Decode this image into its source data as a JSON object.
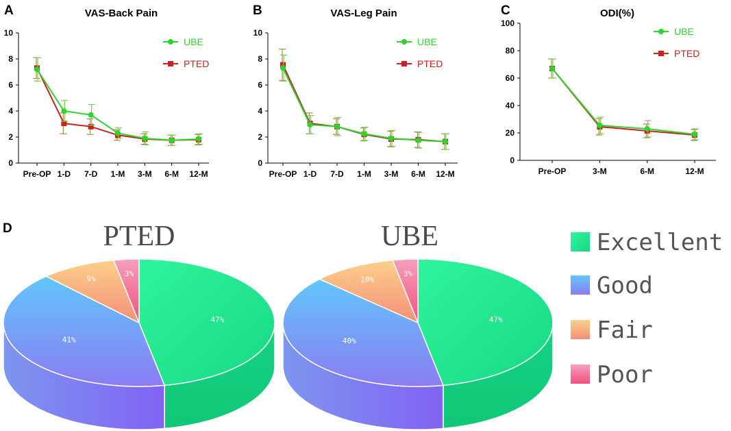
{
  "panels": {
    "A": "A",
    "B": "B",
    "C": "C",
    "D": "D"
  },
  "legend_labels": {
    "ube": "UBE",
    "pted": "PTED"
  },
  "colors": {
    "ube": "#2bd62b",
    "pted": "#d11f1f",
    "err": "#b08a3a",
    "excellent": "#2ee89a",
    "good": "#7f8cf5",
    "fair": "#f7b37a",
    "poor": "#f56a94"
  },
  "chart_data": [
    {
      "type": "line",
      "title": "VAS-Back Pain",
      "categories": [
        "Pre-OP",
        "1-D",
        "7-D",
        "1-M",
        "3-M",
        "6-M",
        "12-M"
      ],
      "ylim": [
        0,
        10
      ],
      "yticks": [
        "0",
        "2",
        "4",
        "6",
        "8",
        "10"
      ],
      "series": [
        {
          "name": "UBE",
          "values": [
            7.2,
            4.0,
            3.7,
            2.3,
            1.9,
            1.75,
            1.85
          ],
          "err": [
            0.9,
            0.8,
            0.8,
            0.4,
            0.5,
            0.4,
            0.4
          ]
        },
        {
          "name": "PTED",
          "values": [
            7.3,
            3.05,
            2.8,
            2.15,
            1.85,
            1.75,
            1.8
          ],
          "err": [
            0.8,
            0.8,
            0.6,
            0.4,
            0.4,
            0.4,
            0.4
          ]
        }
      ]
    },
    {
      "type": "line",
      "title": "VAS-Leg Pain",
      "categories": [
        "Pre-OP",
        "1-D",
        "7-D",
        "1-M",
        "3-M",
        "6-M",
        "12-M"
      ],
      "ylim": [
        0,
        10
      ],
      "yticks": [
        "0",
        "2",
        "4",
        "6",
        "8",
        "10"
      ],
      "series": [
        {
          "name": "UBE",
          "values": [
            7.3,
            2.95,
            2.8,
            2.25,
            1.9,
            1.75,
            1.65
          ],
          "err": [
            1.0,
            0.7,
            0.7,
            0.5,
            0.6,
            0.6,
            0.6
          ]
        },
        {
          "name": "PTED",
          "values": [
            7.55,
            3.05,
            2.8,
            2.2,
            1.85,
            1.8,
            1.65
          ],
          "err": [
            1.2,
            0.8,
            0.6,
            0.5,
            0.6,
            0.6,
            0.6
          ]
        }
      ]
    },
    {
      "type": "line",
      "title": "ODI(%)",
      "categories": [
        "Pre-OP",
        "3-M",
        "6-M",
        "12-M"
      ],
      "ylim": [
        0,
        100
      ],
      "yticks": [
        "0",
        "20",
        "40",
        "60",
        "80",
        "100"
      ],
      "series": [
        {
          "name": "UBE",
          "values": [
            67,
            25.5,
            23,
            19
          ],
          "err": [
            7,
            6,
            6,
            4
          ]
        },
        {
          "name": "PTED",
          "values": [
            67,
            24.5,
            21.5,
            18.5
          ],
          "err": [
            7,
            6,
            5,
            4
          ]
        }
      ]
    },
    {
      "type": "pie",
      "title": "PTED",
      "labels": [
        "Excellent",
        "Good",
        "Fair",
        "Poor"
      ],
      "values": [
        47,
        41,
        9,
        3
      ],
      "data_labels": [
        "47%",
        "41%",
        "9%",
        "3%"
      ]
    },
    {
      "type": "pie",
      "title": "UBE",
      "labels": [
        "Excellent",
        "Good",
        "Fair",
        "Poor"
      ],
      "values": [
        47,
        40,
        10,
        3
      ],
      "data_labels": [
        "47%",
        "40%",
        "10%",
        "3%"
      ]
    }
  ],
  "pie_legend": [
    "Excellent",
    "Good",
    "Fair",
    "Poor"
  ]
}
